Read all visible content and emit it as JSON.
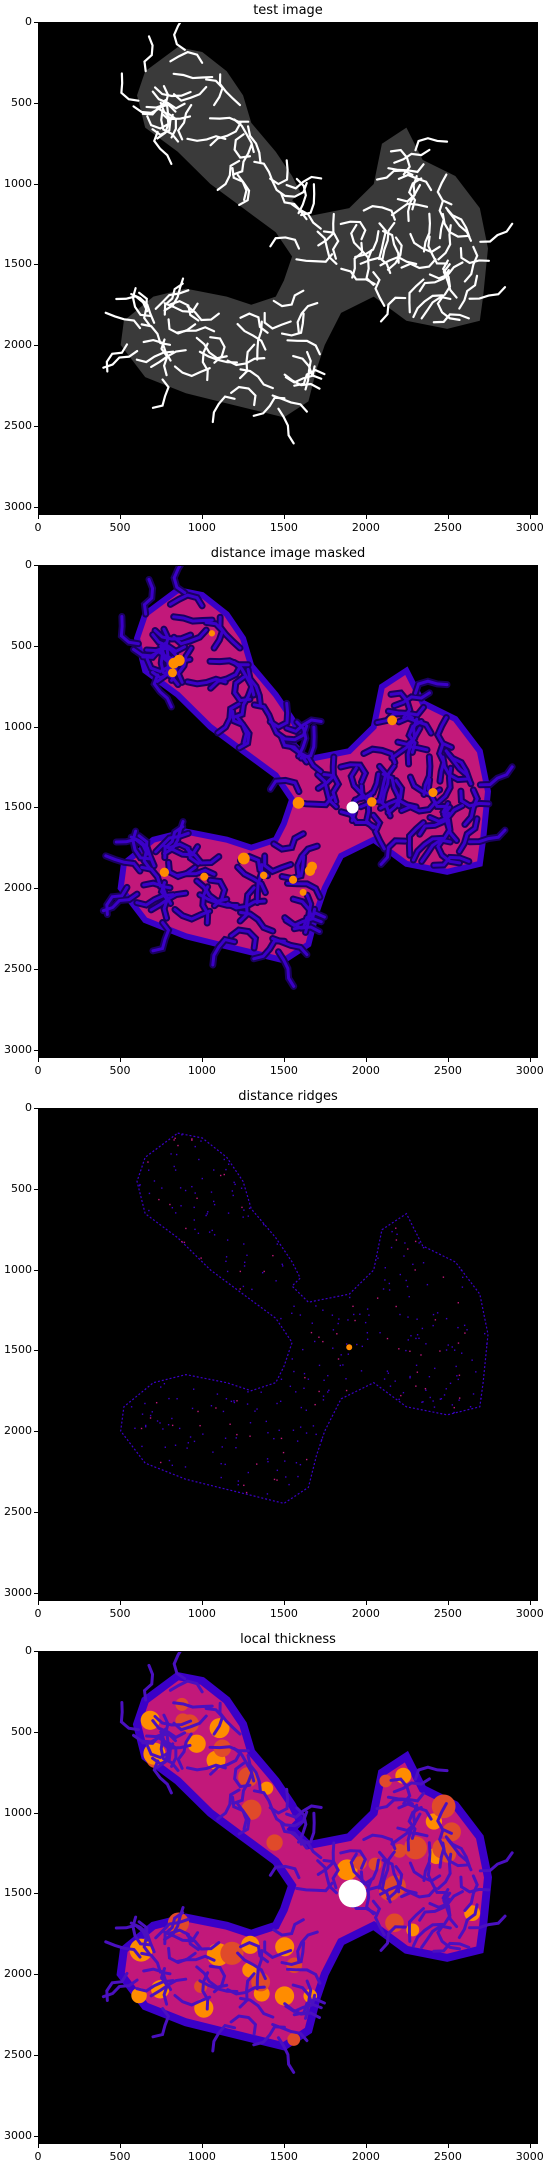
{
  "panels": [
    {
      "title": "test image",
      "kind": "gray"
    },
    {
      "title": "distance image masked",
      "kind": "dist"
    },
    {
      "title": "distance ridges",
      "kind": "ridge"
    },
    {
      "title": "local thickness",
      "kind": "thick"
    }
  ],
  "yticks": [
    "0",
    "500",
    "1000",
    "1500",
    "2000",
    "2500",
    "3000"
  ],
  "xticks": [
    "0",
    "500",
    "1000",
    "1500",
    "2000",
    "2500",
    "3000"
  ],
  "axis_range": [
    0,
    3050
  ],
  "colors": {
    "gray_blob": "#3a3a3a",
    "gray_line": "#ffffff",
    "cmap_low": "#3b00c8",
    "cmap_mid": "#c2187a",
    "cmap_high": "#ff8c00",
    "cmap_top": "#ffffff"
  }
}
